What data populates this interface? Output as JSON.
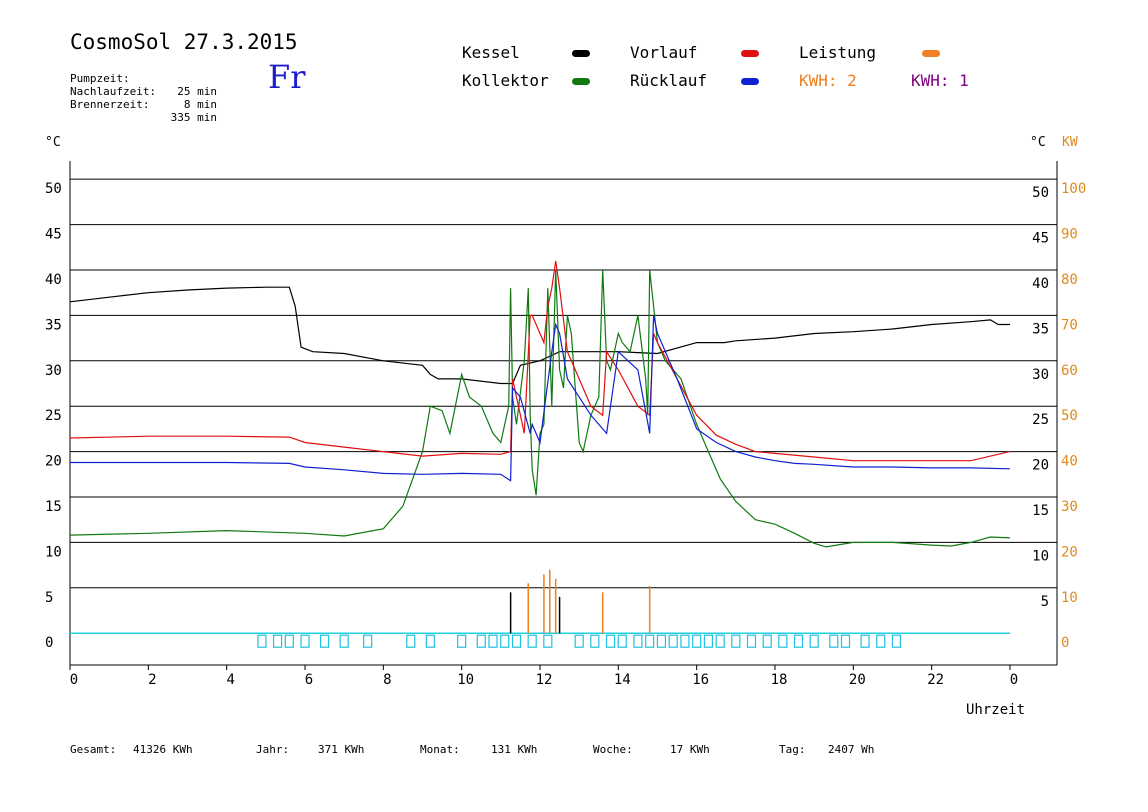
{
  "header": {
    "title": "CosmoSol 27.3.2015",
    "day": "Fr",
    "info": [
      {
        "label": "Pumpzeit:",
        "value": "25 min"
      },
      {
        "label": "Nachlaufzeit:",
        "value": "8 min"
      },
      {
        "label": "Brennerzeit:",
        "value": "335 min"
      }
    ]
  },
  "legend": {
    "kessel": {
      "label": "Kessel",
      "color": "#000000"
    },
    "vorlauf": {
      "label": "Vorlauf",
      "color": "#e01010"
    },
    "leistung": {
      "label": "Leistung",
      "color": "#f08020"
    },
    "kollektor": {
      "label": "Kollektor",
      "color": "#107a10"
    },
    "ruecklauf": {
      "label": "Rücklauf",
      "color": "#1020d0"
    },
    "kwh_a": {
      "label": "KWH: 2",
      "color": "#f08020"
    },
    "kwh_b": {
      "label": "KWH: 1",
      "color": "#800080"
    }
  },
  "axes": {
    "left_unit": "°C",
    "right_unit": "°C",
    "right_unit2": "KW",
    "xlabel": "Uhrzeit"
  },
  "footer": {
    "gesamt": {
      "label": "Gesamt:",
      "value": "41326 KWh"
    },
    "jahr": {
      "label": "Jahr:",
      "value": "371 KWh"
    },
    "monat": {
      "label": "Monat:",
      "value": "131 KWh"
    },
    "woche": {
      "label": "Woche:",
      "value": "17 KWh"
    },
    "tag": {
      "label": "Tag:",
      "value": "2407 Wh"
    }
  },
  "chart_data": {
    "type": "line",
    "xlabel": "Uhrzeit",
    "ylabel": "°C",
    "xlim": [
      0,
      24
    ],
    "ylim": [
      -3.5,
      52
    ],
    "y2lim": [
      0,
      100
    ],
    "grid": "horizontal",
    "x_ticks": [
      "0",
      "2",
      "4",
      "6",
      "8",
      "10",
      "12",
      "14",
      "16",
      "18",
      "20",
      "22",
      "0"
    ],
    "y_ticks": [
      0,
      5,
      10,
      15,
      20,
      25,
      30,
      35,
      40,
      45,
      50
    ],
    "y2_ticks": [
      0,
      10,
      20,
      30,
      40,
      50,
      60,
      70,
      80,
      90,
      100
    ],
    "pump_markers": [
      4.9,
      5.3,
      5.6,
      6.0,
      6.5,
      7.0,
      7.6,
      8.7,
      9.2,
      10.0,
      10.5,
      10.8,
      11.1,
      11.4,
      11.8,
      12.2,
      13.0,
      13.4,
      13.8,
      14.1,
      14.5,
      14.8,
      15.1,
      15.4,
      15.7,
      16.0,
      16.3,
      16.6,
      17.0,
      17.4,
      17.8,
      18.2,
      18.6,
      19.0,
      19.5,
      19.8,
      20.3,
      20.7,
      21.1
    ],
    "series": [
      {
        "name": "Kessel",
        "color": "#000000",
        "x": [
          0,
          1,
          2,
          3,
          4,
          5,
          5.6,
          5.75,
          5.9,
          6.2,
          7,
          8,
          9,
          9.2,
          9.4,
          10,
          11,
          11.3,
          11.5,
          12,
          12.5,
          13,
          14,
          15,
          16,
          16.7,
          17,
          18,
          19,
          20,
          21,
          22,
          23,
          23.5,
          23.7,
          24
        ],
        "y": [
          36.5,
          37,
          37.5,
          37.8,
          38,
          38.1,
          38.1,
          36,
          31.5,
          31,
          30.8,
          30,
          29.5,
          28.5,
          28,
          28,
          27.5,
          27.5,
          29.5,
          30,
          31,
          31,
          31,
          30.8,
          32,
          32,
          32.2,
          32.5,
          33,
          33.2,
          33.5,
          34,
          34.3,
          34.5,
          34,
          34
        ]
      },
      {
        "name": "Kollektor",
        "color": "#107a10",
        "x": [
          0,
          2,
          4,
          6,
          7,
          8,
          8.5,
          9,
          9.2,
          9.5,
          9.7,
          10,
          10.2,
          10.5,
          10.8,
          11,
          11.2,
          11.25,
          11.3,
          11.4,
          11.6,
          11.7,
          11.75,
          11.8,
          11.9,
          12,
          12.1,
          12.2,
          12.3,
          12.4,
          12.5,
          12.6,
          12.7,
          12.8,
          13,
          13.1,
          13.3,
          13.5,
          13.6,
          13.7,
          13.8,
          14,
          14.1,
          14.3,
          14.5,
          14.7,
          14.75,
          14.8,
          15,
          15.2,
          15.4,
          15.6,
          16,
          16.3,
          16.6,
          17,
          17.5,
          18,
          18.5,
          19,
          19.3,
          20,
          21,
          22,
          22.5,
          23,
          23.5,
          24
        ],
        "y": [
          10.8,
          11,
          11.3,
          11,
          10.7,
          11.5,
          14,
          20,
          25,
          24.5,
          22,
          28.5,
          26,
          25,
          22,
          21,
          25,
          38,
          26,
          23,
          30,
          38,
          24,
          18,
          15.2,
          22,
          23,
          38,
          25,
          40,
          29,
          27,
          35,
          33,
          21,
          20,
          24,
          26,
          40,
          30,
          29,
          33,
          32,
          31,
          35,
          28,
          24,
          40,
          32,
          30,
          29,
          28,
          23,
          20,
          17,
          14.5,
          12.5,
          12,
          11,
          9.9,
          9.5,
          10,
          10,
          9.7,
          9.6,
          10,
          10.6,
          10.5
        ]
      },
      {
        "name": "Vorlauf",
        "color": "#e01010",
        "x": [
          0,
          2,
          4,
          5.6,
          6,
          7,
          8,
          9,
          10,
          11,
          11.25,
          11.3,
          11.4,
          11.6,
          11.75,
          11.8,
          12,
          12.1,
          12.2,
          12.3,
          12.4,
          12.5,
          12.7,
          13,
          13.3,
          13.6,
          13.7,
          14,
          14.5,
          14.8,
          14.9,
          15,
          15.5,
          16,
          16.5,
          17,
          17.5,
          18,
          19,
          20,
          21,
          22,
          23,
          24
        ],
        "y": [
          21.5,
          21.7,
          21.7,
          21.6,
          21,
          20.5,
          20,
          19.5,
          19.8,
          19.7,
          20,
          28,
          26,
          22,
          35,
          35,
          33,
          32,
          36,
          38,
          41,
          38,
          31,
          28,
          25,
          24,
          31,
          29,
          25,
          24,
          33,
          32,
          28,
          24,
          21.8,
          20.8,
          20,
          19.8,
          19.4,
          19,
          19,
          19,
          19,
          20
        ]
      },
      {
        "name": "Rücklauf",
        "color": "#1020d0",
        "x": [
          0,
          2,
          4,
          5.6,
          6,
          7,
          8,
          9,
          10,
          11,
          11.25,
          11.3,
          11.5,
          11.75,
          11.8,
          12,
          12.3,
          12.4,
          12.5,
          12.7,
          13,
          13.3,
          13.6,
          13.7,
          14,
          14.5,
          14.8,
          14.9,
          15,
          15.5,
          16,
          16.5,
          17,
          17.5,
          18,
          18.5,
          19,
          20,
          21,
          22,
          23,
          24
        ],
        "y": [
          18.8,
          18.8,
          18.8,
          18.7,
          18.3,
          18,
          17.6,
          17.5,
          17.6,
          17.5,
          16.8,
          27,
          26,
          22,
          23,
          21,
          31,
          34,
          33,
          28,
          26,
          24,
          22.5,
          22,
          31,
          29,
          22,
          35,
          33,
          28,
          22.5,
          21,
          20,
          19.4,
          19,
          18.7,
          18.6,
          18.3,
          18.3,
          18.2,
          18.2,
          18.1
        ]
      }
    ],
    "power_spikes": [
      {
        "x": 11.25,
        "y": 4.5,
        "color": "#000000"
      },
      {
        "x": 11.7,
        "y": 5.5,
        "color": "#f08020"
      },
      {
        "x": 12.1,
        "y": 6.5,
        "color": "#f08020"
      },
      {
        "x": 12.25,
        "y": 7,
        "color": "#f08020"
      },
      {
        "x": 12.4,
        "y": 6,
        "color": "#f08020"
      },
      {
        "x": 12.5,
        "y": 4,
        "color": "#000000"
      },
      {
        "x": 13.6,
        "y": 4.5,
        "color": "#f08020"
      },
      {
        "x": 14.8,
        "y": 5.2,
        "color": "#f08020"
      }
    ]
  }
}
